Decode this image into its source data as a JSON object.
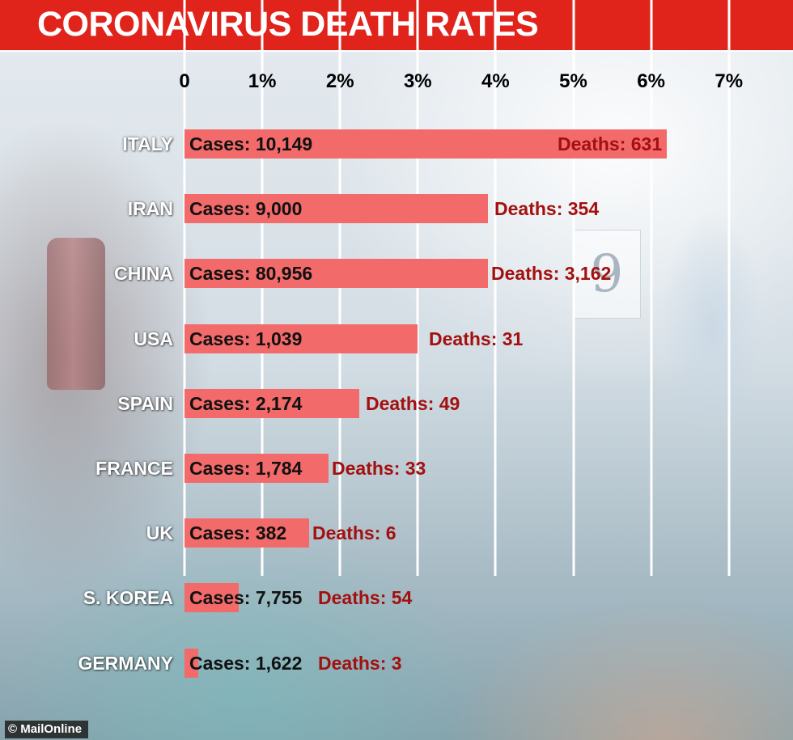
{
  "header": {
    "title": "CORONAVIRUS DEATH RATES"
  },
  "credit": "© MailOnline",
  "chart_data": {
    "type": "bar",
    "orientation": "horizontal",
    "title": "CORONAVIRUS DEATH RATES",
    "xlim": [
      0,
      7
    ],
    "x_ticks": [
      "0",
      "1%",
      "2%",
      "3%",
      "4%",
      "5%",
      "6%",
      "7%"
    ],
    "grid": true,
    "categories": [
      "ITALY",
      "IRAN",
      "CHINA",
      "USA",
      "SPAIN",
      "FRANCE",
      "UK",
      "S. KOREA",
      "GERMANY"
    ],
    "values": [
      6.2,
      3.9,
      3.9,
      3.0,
      2.25,
      1.85,
      1.6,
      0.7,
      0.18
    ],
    "case_labels": [
      "Cases: 10,149",
      "Cases: 9,000",
      "Cases: 80,956",
      "Cases: 1,039",
      "Cases: 2,174",
      "Cases: 1,784",
      "Cases: 382",
      "Cases: 7,755",
      "Cases: 1,622"
    ],
    "death_labels": [
      "Deaths: 631",
      "Deaths: 354",
      "Deaths: 3,162",
      "Deaths: 31",
      "Deaths: 49",
      "Deaths: 33",
      "Deaths: 6",
      "Deaths: 54",
      "Deaths: 3"
    ],
    "colors": {
      "bar": "#f26a6a",
      "deaths_text": "#a3100f",
      "header": "#e0241c"
    }
  }
}
